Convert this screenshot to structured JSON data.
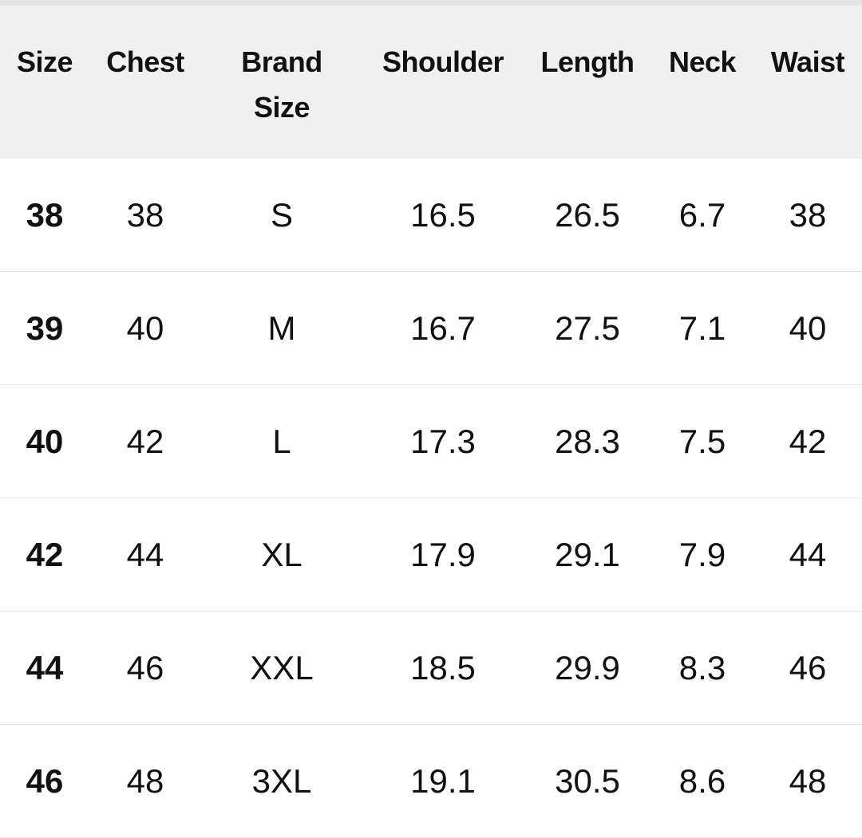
{
  "headers": [
    "Size",
    "Chest",
    "Brand Size",
    "Shoulder",
    "Length",
    "Neck",
    "Waist"
  ],
  "rows": [
    [
      "38",
      "38",
      "S",
      "16.5",
      "26.5",
      "6.7",
      "38"
    ],
    [
      "39",
      "40",
      "M",
      "16.7",
      "27.5",
      "7.1",
      "40"
    ],
    [
      "40",
      "42",
      "L",
      "17.3",
      "28.3",
      "7.5",
      "42"
    ],
    [
      "42",
      "44",
      "XL",
      "17.9",
      "29.1",
      "7.9",
      "44"
    ],
    [
      "44",
      "46",
      "XXL",
      "18.5",
      "29.9",
      "8.3",
      "46"
    ],
    [
      "46",
      "48",
      "3XL",
      "19.1",
      "30.5",
      "8.6",
      "48"
    ]
  ]
}
